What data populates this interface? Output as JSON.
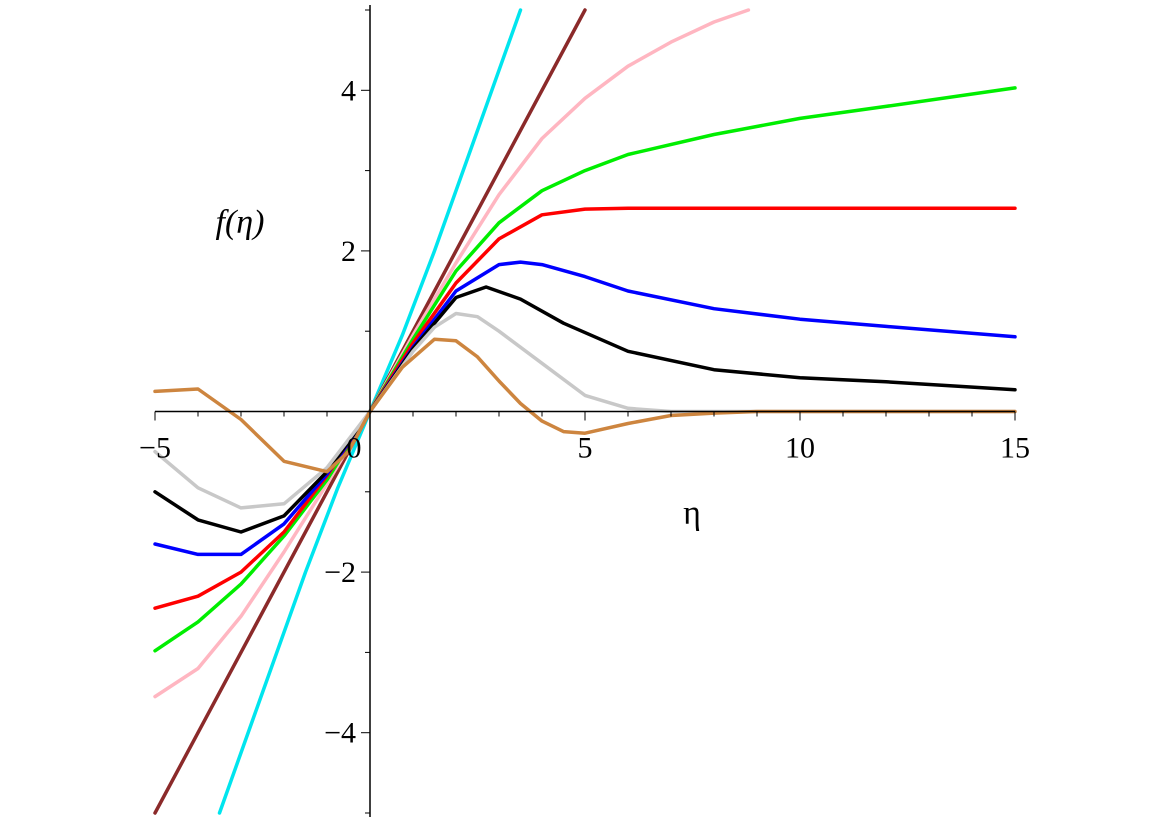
{
  "chart_data": {
    "type": "line",
    "title": "",
    "xlabel": "η",
    "ylabel": "f(η)",
    "xlim": [
      -5,
      15
    ],
    "ylim": [
      -5,
      5
    ],
    "grid": false,
    "x_ticks": [
      {
        "value": -5,
        "label": "−5"
      },
      {
        "value": 0,
        "label": "0"
      },
      {
        "value": 5,
        "label": "5"
      },
      {
        "value": 10,
        "label": "10"
      },
      {
        "value": 15,
        "label": "15"
      }
    ],
    "y_ticks": [
      {
        "value": -4,
        "label": "−4"
      },
      {
        "value": -2,
        "label": "−2"
      },
      {
        "value": 2,
        "label": "2"
      },
      {
        "value": 4,
        "label": "4"
      }
    ],
    "series": [
      {
        "color": "#00e5ee",
        "points": [
          [
            -3.5,
            -5.0
          ],
          [
            -2.5,
            -3.5
          ],
          [
            -1.5,
            -2.0
          ],
          [
            -0.75,
            -0.95
          ],
          [
            0,
            0
          ],
          [
            0.75,
            0.95
          ],
          [
            1.5,
            2.0
          ],
          [
            2.5,
            3.5
          ],
          [
            3.5,
            5.0
          ]
        ]
      },
      {
        "color": "#8b2a2a",
        "points": [
          [
            -5,
            -5.0
          ],
          [
            0,
            0
          ],
          [
            5,
            5.0
          ]
        ]
      },
      {
        "color": "#ffb6c1",
        "points": [
          [
            -5,
            -3.55
          ],
          [
            -4,
            -3.2
          ],
          [
            -3,
            -2.55
          ],
          [
            -2,
            -1.75
          ],
          [
            -1,
            -0.9
          ],
          [
            0,
            0
          ],
          [
            1,
            0.95
          ],
          [
            2,
            1.85
          ],
          [
            3,
            2.7
          ],
          [
            4,
            3.4
          ],
          [
            5,
            3.9
          ],
          [
            6,
            4.3
          ],
          [
            7,
            4.6
          ],
          [
            8,
            4.85
          ],
          [
            8.8,
            5.0
          ]
        ]
      },
      {
        "color": "#00ee00",
        "points": [
          [
            -5,
            -2.98
          ],
          [
            -4,
            -2.62
          ],
          [
            -3,
            -2.15
          ],
          [
            -2,
            -1.55
          ],
          [
            -1,
            -0.85
          ],
          [
            0,
            0
          ],
          [
            1,
            0.9
          ],
          [
            2,
            1.75
          ],
          [
            3,
            2.35
          ],
          [
            4,
            2.75
          ],
          [
            5,
            3.0
          ],
          [
            6,
            3.2
          ],
          [
            8,
            3.45
          ],
          [
            10,
            3.65
          ],
          [
            12,
            3.8
          ],
          [
            15,
            4.03
          ]
        ]
      },
      {
        "color": "#ff0000",
        "points": [
          [
            -5,
            -2.45
          ],
          [
            -4,
            -2.3
          ],
          [
            -3,
            -2.0
          ],
          [
            -2,
            -1.5
          ],
          [
            -1,
            -0.8
          ],
          [
            0,
            0
          ],
          [
            1,
            0.85
          ],
          [
            2,
            1.6
          ],
          [
            3,
            2.15
          ],
          [
            4,
            2.45
          ],
          [
            5,
            2.52
          ],
          [
            6,
            2.53
          ],
          [
            8,
            2.53
          ],
          [
            15,
            2.53
          ]
        ]
      },
      {
        "color": "#0000ff",
        "points": [
          [
            -5,
            -1.65
          ],
          [
            -4,
            -1.78
          ],
          [
            -3,
            -1.78
          ],
          [
            -2,
            -1.4
          ],
          [
            -1,
            -0.78
          ],
          [
            0,
            0
          ],
          [
            1,
            0.8
          ],
          [
            2,
            1.5
          ],
          [
            3,
            1.83
          ],
          [
            3.5,
            1.86
          ],
          [
            4,
            1.83
          ],
          [
            5,
            1.68
          ],
          [
            6,
            1.5
          ],
          [
            8,
            1.28
          ],
          [
            10,
            1.15
          ],
          [
            12,
            1.06
          ],
          [
            15,
            0.93
          ]
        ]
      },
      {
        "color": "#000000",
        "points": [
          [
            -5,
            -1.0
          ],
          [
            -4,
            -1.35
          ],
          [
            -3,
            -1.5
          ],
          [
            -2,
            -1.3
          ],
          [
            -1,
            -0.75
          ],
          [
            0,
            0
          ],
          [
            1,
            0.78
          ],
          [
            2,
            1.42
          ],
          [
            2.7,
            1.55
          ],
          [
            3.5,
            1.4
          ],
          [
            4.5,
            1.1
          ],
          [
            6,
            0.75
          ],
          [
            8,
            0.52
          ],
          [
            10,
            0.42
          ],
          [
            12,
            0.37
          ],
          [
            15,
            0.27
          ]
        ]
      },
      {
        "color": "#c8c8c8",
        "points": [
          [
            -5,
            -0.5
          ],
          [
            -4,
            -0.95
          ],
          [
            -3,
            -1.2
          ],
          [
            -2,
            -1.15
          ],
          [
            -1,
            -0.7
          ],
          [
            0,
            0
          ],
          [
            1,
            0.75
          ],
          [
            1.5,
            1.05
          ],
          [
            2,
            1.22
          ],
          [
            2.5,
            1.18
          ],
          [
            3,
            1.0
          ],
          [
            4,
            0.6
          ],
          [
            5,
            0.2
          ],
          [
            6,
            0.04
          ],
          [
            7,
            0.0
          ],
          [
            15,
            0.0
          ]
        ]
      },
      {
        "color": "#cd853f",
        "points": [
          [
            -5,
            0.25
          ],
          [
            -4,
            0.28
          ],
          [
            -3,
            -0.1
          ],
          [
            -2,
            -0.62
          ],
          [
            -1,
            -0.75
          ],
          [
            -0.5,
            -0.5
          ],
          [
            0,
            0
          ],
          [
            0.75,
            0.55
          ],
          [
            1.5,
            0.9
          ],
          [
            2,
            0.88
          ],
          [
            2.5,
            0.68
          ],
          [
            3,
            0.38
          ],
          [
            3.5,
            0.1
          ],
          [
            4,
            -0.12
          ],
          [
            4.5,
            -0.25
          ],
          [
            5,
            -0.27
          ],
          [
            6,
            -0.15
          ],
          [
            7,
            -0.05
          ],
          [
            8,
            -0.02
          ],
          [
            9,
            0.0
          ],
          [
            15,
            0.0
          ]
        ]
      }
    ]
  }
}
